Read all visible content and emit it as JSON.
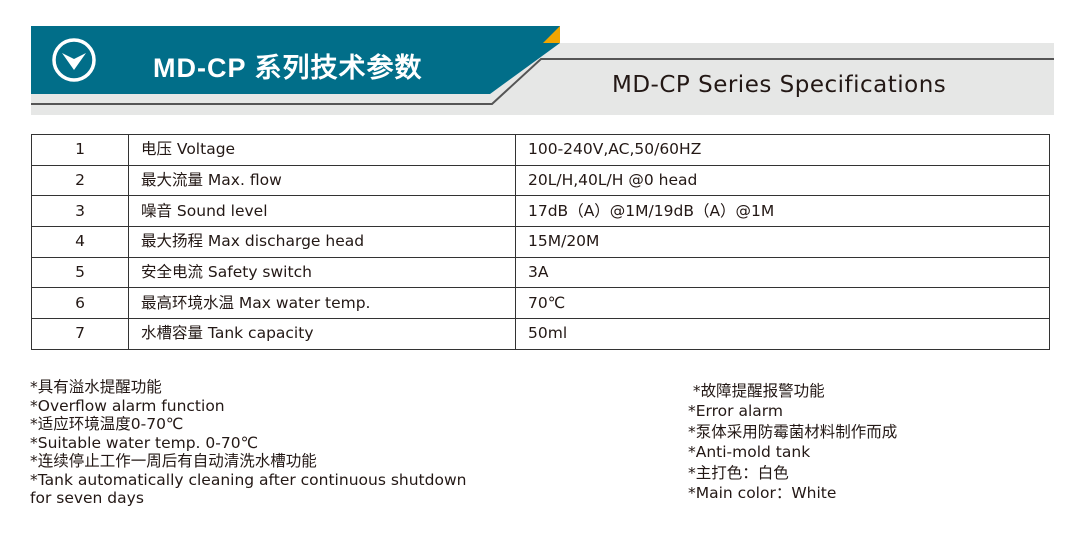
{
  "header": {
    "title_cn": "MD-CP 系列技术参数",
    "title_en": "MD-CP Series Specifications",
    "icon": "chevron-down-circle-icon",
    "colors": {
      "teal": "#016e89",
      "orange": "#f1a500",
      "gray": "#e6e7e6"
    }
  },
  "specs": [
    {
      "no": "1",
      "param": "电压 Voltage",
      "value": "100-240V,AC,50/60HZ"
    },
    {
      "no": "2",
      "param": "最大流量 Max. flow",
      "value": "20L/H,40L/H @0 head"
    },
    {
      "no": "3",
      "param": "噪音 Sound level",
      "value": "17dB（A）@1M/19dB（A）@1M"
    },
    {
      "no": "4",
      "param": "最大扬程 Max discharge head",
      "value": "15M/20M"
    },
    {
      "no": "5",
      "param": "安全电流 Safety switch",
      "value": "3A"
    },
    {
      "no": "6",
      "param": "最高环境水温 Max water temp.",
      "value": "70℃"
    },
    {
      "no": "7",
      "param": "水槽容量 Tank capacity",
      "value": "50ml"
    }
  ],
  "notes_left": [
    "*具有溢水提醒功能",
    "*Overflow alarm function",
    "*适应环境温度0-70℃",
    "*Suitable water temp. 0-70℃",
    "*连续停止工作一周后有自动清洗水槽功能",
    "*Tank automatically cleaning after continuous shutdown",
    "for seven days"
  ],
  "notes_right": [
    " *故障提醒报警功能",
    "*Error alarm",
    "*泵体采用防霉菌材料制作而成",
    "*Anti-mold tank",
    "*主打色：白色",
    "*Main color：White"
  ]
}
